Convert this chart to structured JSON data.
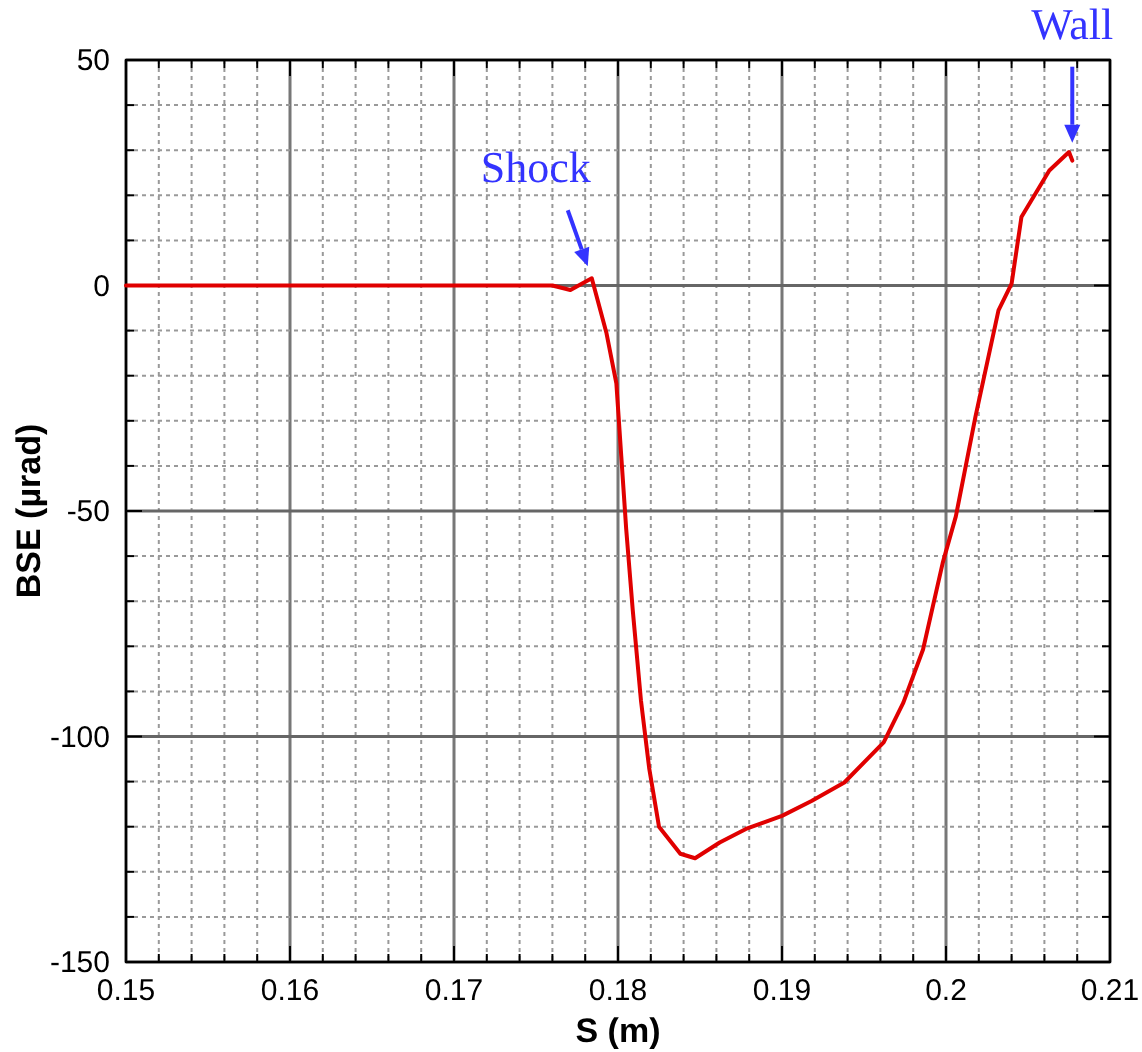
{
  "chart_data": {
    "type": "line",
    "xlabel": "S (m)",
    "ylabel": "BSE (µrad)",
    "xlim": [
      0.15,
      0.21
    ],
    "ylim": [
      -150,
      50
    ],
    "xticks": [
      0.15,
      {
        "value": 0.152,
        "label": null
      },
      {
        "value": 0.154,
        "label": null
      },
      {
        "value": 0.156,
        "label": null
      },
      {
        "value": 0.158,
        "label": null
      },
      0.16,
      {
        "value": 0.162,
        "label": null
      },
      {
        "value": 0.164,
        "label": null
      },
      {
        "value": 0.166,
        "label": null
      },
      {
        "value": 0.168,
        "label": null
      },
      0.17,
      {
        "value": 0.172,
        "label": null
      },
      {
        "value": 0.174,
        "label": null
      },
      {
        "value": 0.176,
        "label": null
      },
      {
        "value": 0.178,
        "label": null
      },
      0.18,
      {
        "value": 0.182,
        "label": null
      },
      {
        "value": 0.184,
        "label": null
      },
      {
        "value": 0.186,
        "label": null
      },
      {
        "value": 0.188,
        "label": null
      },
      0.19,
      {
        "value": 0.192,
        "label": null
      },
      {
        "value": 0.194,
        "label": null
      },
      {
        "value": 0.196,
        "label": null
      },
      {
        "value": 0.198,
        "label": null
      },
      {
        "value": 0.2,
        "label": "0.2"
      },
      {
        "value": 0.202,
        "label": null
      },
      {
        "value": 0.204,
        "label": null
      },
      {
        "value": 0.206,
        "label": null
      },
      {
        "value": 0.208,
        "label": null
      },
      0.21
    ],
    "yticks": [
      -150,
      {
        "value": -140,
        "label": null
      },
      {
        "value": -130,
        "label": null
      },
      {
        "value": -120,
        "label": null
      },
      {
        "value": -110,
        "label": null
      },
      -100,
      {
        "value": -90,
        "label": null
      },
      {
        "value": -80,
        "label": null
      },
      {
        "value": -70,
        "label": null
      },
      {
        "value": -60,
        "label": null
      },
      -50,
      {
        "value": -40,
        "label": null
      },
      {
        "value": -30,
        "label": null
      },
      {
        "value": -20,
        "label": null
      },
      {
        "value": -10,
        "label": null
      },
      0,
      {
        "value": 10,
        "label": null
      },
      {
        "value": 20,
        "label": null
      },
      {
        "value": 30,
        "label": null
      },
      {
        "value": 40,
        "label": null
      },
      50
    ],
    "grid": true,
    "line_style": "solid",
    "marker": "none",
    "series": [
      {
        "color": "#e00000",
        "x": [
          0.15,
          0.16,
          0.17,
          0.176,
          0.1771,
          0.1784,
          0.1793,
          0.1799,
          0.1802,
          0.1805,
          0.1809,
          0.1814,
          0.1819,
          0.1825,
          0.1838,
          0.1847,
          0.1862,
          0.1878,
          0.19,
          0.1918,
          0.1938,
          0.1962,
          0.1974,
          0.1986,
          0.1998,
          0.2006,
          0.2018,
          0.2032,
          0.204,
          0.2046,
          0.2063,
          0.2075,
          0.2077
        ],
        "values": [
          0,
          0,
          0,
          0,
          -1,
          1.6,
          -10.6,
          -21.7,
          -37.9,
          -54,
          -72,
          -92,
          -107,
          -120,
          -126,
          -127,
          -123.5,
          -120.5,
          -117.6,
          -114.3,
          -110.2,
          -101.3,
          -92.5,
          -80.7,
          -61.5,
          -51.2,
          -29,
          -5.5,
          0.4,
          15.2,
          25.5,
          29.6,
          27.7
        ]
      }
    ],
    "annotations": [
      {
        "text": "Shock",
        "x": 0.1784,
        "y": 1.6
      },
      {
        "text": "Wall",
        "x": 0.2077,
        "y": 29
      }
    ]
  }
}
